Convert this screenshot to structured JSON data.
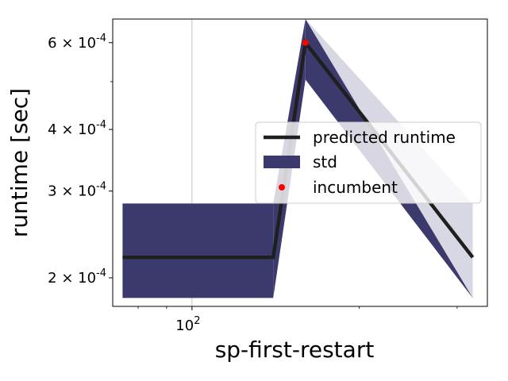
{
  "chart_data": {
    "type": "line",
    "xlabel": "sp-first-restart",
    "ylabel": "runtime [sec]",
    "xscale": "log",
    "yscale": "log",
    "xlim": [
      72,
      340
    ],
    "ylim": [
      0.000175,
      0.00067
    ],
    "x_ticks": [
      {
        "value": 100,
        "label": "10^2"
      }
    ],
    "y_ticks": [
      {
        "value": 0.0002,
        "label": "2 × 10^-4"
      },
      {
        "value": 0.0003,
        "label": "3 × 10^-4"
      },
      {
        "value": 0.0004,
        "label": "4 × 10^-4"
      },
      {
        "value": 0.0006,
        "label": "6 × 10^-4"
      }
    ],
    "grid": "x-major only",
    "legend_position": "center-right",
    "series": [
      {
        "name": "predicted runtime",
        "color": "#1f1f1f",
        "x": [
          75,
          140,
          160,
          320
        ],
        "y": [
          0.00022,
          0.00022,
          0.0006,
          0.00022
        ]
      },
      {
        "name": "std",
        "kind": "band",
        "colors": [
          "#3c3a6c",
          "#d8d8e4"
        ],
        "x": [
          75,
          140,
          160,
          320
        ],
        "lower": [
          0.000182,
          0.000182,
          0.000505,
          0.000182
        ],
        "upper": [
          0.000283,
          0.000283,
          0.00067,
          0.000283
        ]
      },
      {
        "name": "incumbent",
        "kind": "point",
        "color": "#ff0000",
        "x": [
          160
        ],
        "y": [
          0.0006
        ]
      }
    ]
  }
}
